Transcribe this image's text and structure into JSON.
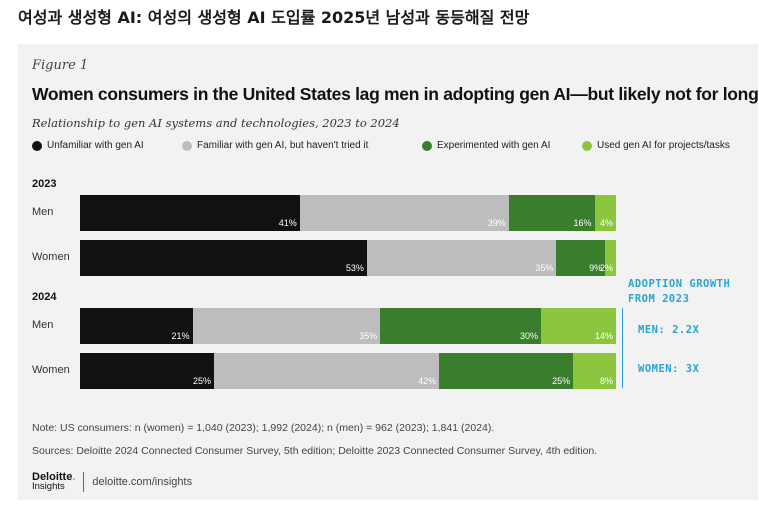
{
  "headline": "여성과 생성형 AI: 여성의 생성형 AI 도입률 2025년 남성과 동등해질 전망",
  "figure_label": "Figure 1",
  "colors": {
    "unfamiliar": "#111111",
    "familiar": "#bdbdbd",
    "experimented": "#3a7d2c",
    "used": "#8cc63f",
    "annotation": "#2aa3d6",
    "panel_bg": "#f2f2f2"
  },
  "chart_data": {
    "type": "bar",
    "orientation": "horizontal",
    "stacked": true,
    "title": "Women consumers in the United States lag men in adopting gen AI—but likely not for long",
    "subtitle": "Relationship to gen AI systems and technologies, 2023 to 2024",
    "legend_position": "top",
    "series": [
      {
        "name": "Unfamiliar with gen AI",
        "color_key": "unfamiliar"
      },
      {
        "name": "Familiar with gen AI, but haven't tried it",
        "color_key": "familiar"
      },
      {
        "name": "Experimented with gen AI",
        "color_key": "experimented"
      },
      {
        "name": "Used gen AI for projects/tasks",
        "color_key": "used"
      }
    ],
    "groups": [
      {
        "year": "2023",
        "rows": [
          {
            "label": "Men",
            "values": [
              41,
              39,
              16,
              4
            ],
            "value_labels": [
              "41%",
              "39%",
              "16%",
              "4%"
            ]
          },
          {
            "label": "Women",
            "values": [
              53,
              35,
              9,
              2
            ],
            "value_labels": [
              "53%",
              "35%",
              "9%",
              "2%"
            ]
          }
        ]
      },
      {
        "year": "2024",
        "rows": [
          {
            "label": "Men",
            "values": [
              21,
              35,
              30,
              14
            ],
            "value_labels": [
              "21%",
              "35%",
              "30%",
              "14%"
            ]
          },
          {
            "label": "Women",
            "values": [
              25,
              42,
              25,
              8
            ],
            "value_labels": [
              "25%",
              "42%",
              "25%",
              "8%"
            ]
          }
        ]
      }
    ],
    "annotations": {
      "heading_line1": "ADOPTION GROWTH",
      "heading_line2": "FROM 2023",
      "men": "MEN: 2.2X",
      "women": "WOMEN: 3X"
    }
  },
  "notes": {
    "note": "Note: US consumers: n (women) = 1,040 (2023); 1,992 (2024); n (men) = 962 (2023); 1,841 (2024).",
    "sources": "Sources: Deloitte 2024 Connected Consumer Survey, 5th edition; Deloitte 2023 Connected Consumer Survey, 4th edition."
  },
  "footer": {
    "logo_top": "Deloitte",
    "logo_dot": ".",
    "logo_bottom": "Insights",
    "url": "deloitte.com/insights"
  }
}
